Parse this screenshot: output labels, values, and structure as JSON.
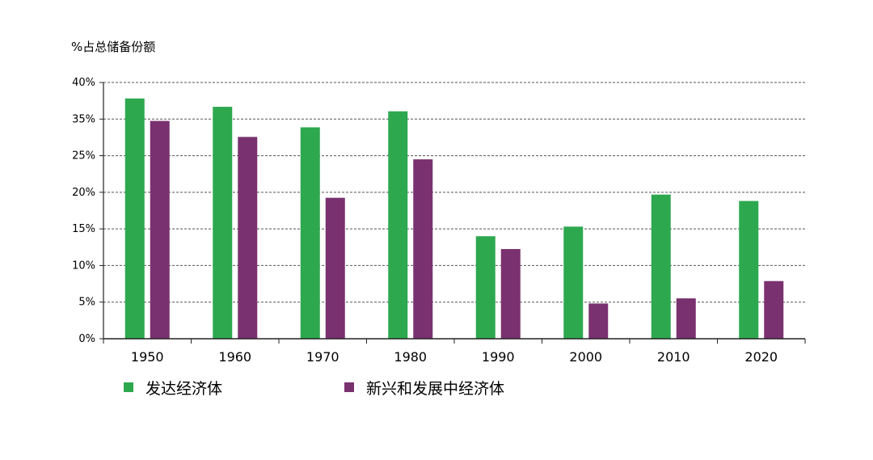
{
  "chart_data": {
    "type": "bar",
    "ylabel": "%占总储备份额",
    "categories": [
      "1950",
      "1960",
      "1970",
      "1980",
      "1990",
      "2000",
      "2010",
      "2020"
    ],
    "series": [
      {
        "name": "发达经济体",
        "color": "#2ea84f",
        "values": [
          37.5,
          36.2,
          33.0,
          35.5,
          16.0,
          17.5,
          22.5,
          21.5
        ]
      },
      {
        "name": "新兴和发展中经济体",
        "color": "#7a3170",
        "values": [
          34.0,
          31.5,
          22.0,
          28.0,
          14.0,
          5.5,
          6.3,
          9.0
        ]
      }
    ],
    "ytick_labels": [
      "0%",
      "5%",
      "10%",
      "15%",
      "20%",
      "25%",
      "35%",
      "40%"
    ],
    "ylim": [
      0,
      40
    ],
    "grid": true,
    "legend_position": "bottom"
  }
}
